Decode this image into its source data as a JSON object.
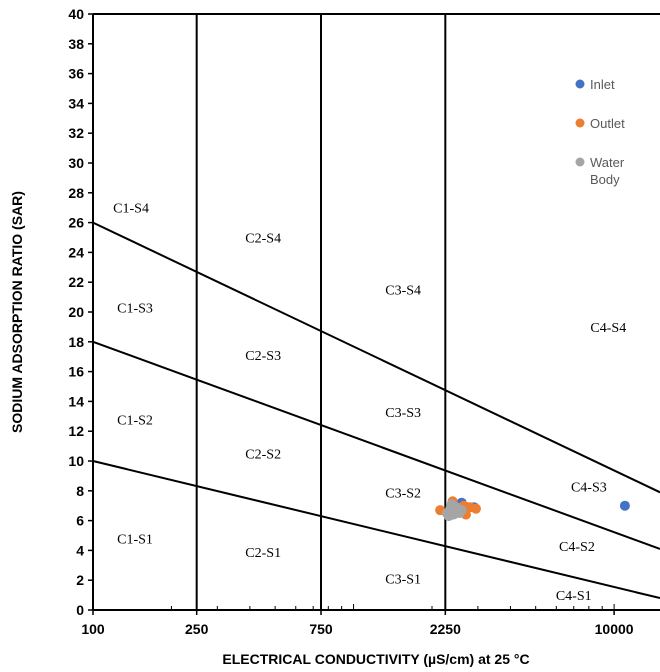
{
  "chart_data": {
    "type": "scatter",
    "title": "",
    "xlabel": "ELECTRICAL CONDUCTIVITY (µS/cm) at 25 °C",
    "ylabel": "SODIUM ADSORPTION RATIO (SAR)",
    "x_scale": "log",
    "xlim": [
      100,
      15000
    ],
    "ylim": [
      0,
      40
    ],
    "x_ticks": [
      {
        "value": 100,
        "label": "100"
      },
      {
        "value": 250,
        "label": "250"
      },
      {
        "value": 750,
        "label": "750"
      },
      {
        "value": 2250,
        "label": "2250"
      },
      {
        "value": 10000,
        "label": "10000"
      }
    ],
    "y_ticks": [
      0,
      2,
      4,
      6,
      8,
      10,
      12,
      14,
      16,
      18,
      20,
      22,
      24,
      26,
      28,
      30,
      32,
      34,
      36,
      38,
      40
    ],
    "class_boundaries_ec": [
      250,
      750,
      2250
    ],
    "sodium_hazard_lines": [
      {
        "from": [
          100,
          10
        ],
        "to": [
          15000,
          0.8
        ]
      },
      {
        "from": [
          100,
          18
        ],
        "to": [
          15000,
          4.1
        ]
      },
      {
        "from": [
          100,
          26
        ],
        "to": [
          15000,
          7.9
        ]
      }
    ],
    "region_labels": [
      {
        "text": "C1-S4",
        "x": 140,
        "y": 27
      },
      {
        "text": "C1-S3",
        "x": 145,
        "y": 20.3
      },
      {
        "text": "C1-S2",
        "x": 145,
        "y": 12.8
      },
      {
        "text": "C1-S1",
        "x": 145,
        "y": 4.8
      },
      {
        "text": "C2-S4",
        "x": 450,
        "y": 25
      },
      {
        "text": "C2-S3",
        "x": 450,
        "y": 17.1
      },
      {
        "text": "C2-S2",
        "x": 450,
        "y": 10.5
      },
      {
        "text": "C2-S1",
        "x": 450,
        "y": 3.9
      },
      {
        "text": "C3-S4",
        "x": 1550,
        "y": 21.5
      },
      {
        "text": "C3-S3",
        "x": 1550,
        "y": 13.3
      },
      {
        "text": "C3-S2",
        "x": 1550,
        "y": 7.9
      },
      {
        "text": "C3-S1",
        "x": 1550,
        "y": 2.1
      },
      {
        "text": "C4-S4",
        "x": 9500,
        "y": 19.0
      },
      {
        "text": "C4-S3",
        "x": 8000,
        "y": 8.3
      },
      {
        "text": "C4-S2",
        "x": 7200,
        "y": 4.3
      },
      {
        "text": "C4-S1",
        "x": 7000,
        "y": 1.0
      }
    ],
    "legend_position": "top-right",
    "series": [
      {
        "name": "Inlet",
        "color": "#4472c4",
        "points": [
          [
            2600,
            7.2
          ],
          [
            2500,
            6.8
          ],
          [
            2750,
            6.9
          ],
          [
            2900,
            6.9
          ],
          [
            11000,
            7.0
          ]
        ]
      },
      {
        "name": "Outlet",
        "color": "#ed7d31",
        "points": [
          [
            2150,
            6.7
          ],
          [
            2400,
            7.3
          ],
          [
            2550,
            6.6
          ],
          [
            2700,
            6.4
          ],
          [
            2800,
            6.9
          ],
          [
            2950,
            6.8
          ],
          [
            2650,
            7.0
          ]
        ]
      },
      {
        "name": "Water Body",
        "color": "#a5a5a5",
        "points": [
          [
            2280,
            6.5
          ],
          [
            2350,
            6.8
          ],
          [
            2420,
            6.4
          ],
          [
            2480,
            6.9
          ],
          [
            2550,
            6.5
          ],
          [
            2600,
            6.7
          ],
          [
            2380,
            7.1
          ],
          [
            2320,
            6.3
          ]
        ]
      }
    ]
  }
}
